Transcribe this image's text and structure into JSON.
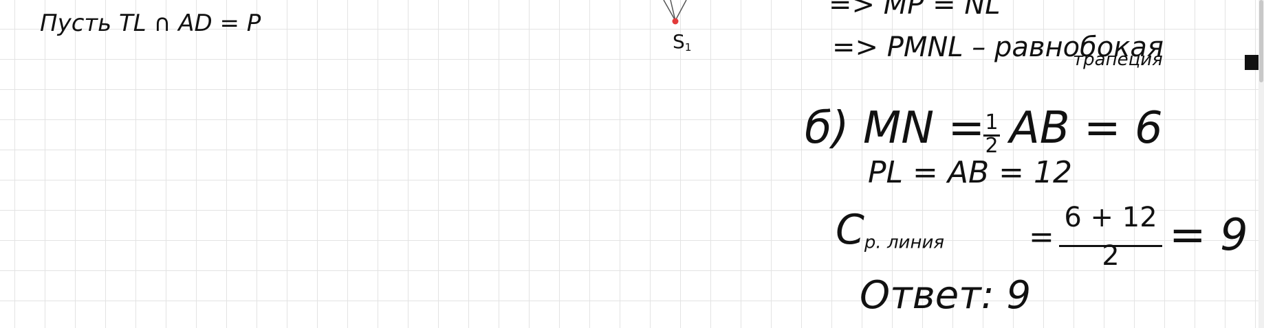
{
  "left": {
    "statement": "Пусть TL ∩ AD = P"
  },
  "figure": {
    "point_label": "S",
    "point_sub": "1",
    "point_color": "#e23a3a"
  },
  "right": {
    "line_top": "=> MP = NL",
    "line_conclusion": "=> PMNL – равнобокая",
    "line_conclusion2": "трапеция",
    "part_b_label": "б)",
    "mn_lhs": "MN =",
    "half_num": "1",
    "half_den": "2",
    "mn_rhs": "AB = 6",
    "pl_line": "PL = AB = 12",
    "mid_label": "C",
    "mid_sub": "р. линия",
    "eq": "=",
    "frac_num": "6 + 12",
    "frac_den": "2",
    "mid_result": "= 9",
    "answer": "Ответ: 9"
  }
}
